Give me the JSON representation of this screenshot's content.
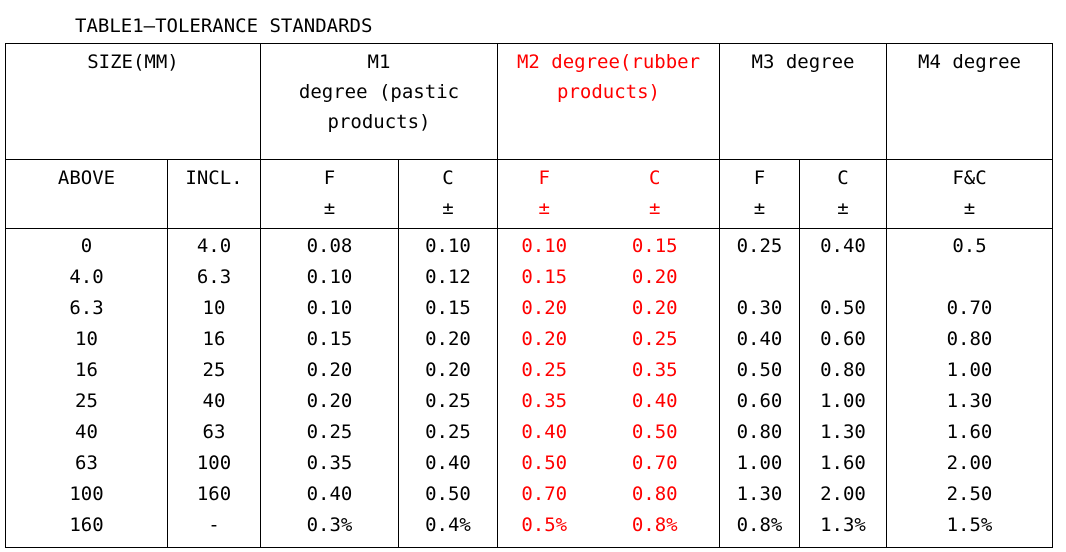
{
  "title": "TABLE1—TOLERANCE STANDARDS",
  "table": {
    "groups": [
      {
        "lines": [
          "SIZE(MM)"
        ]
      },
      {
        "lines": [
          "M1",
          "degree (pastic",
          "products)"
        ]
      },
      {
        "lines": [
          "M2 degree(rubber",
          "products)"
        ],
        "color": "#ff0000"
      },
      {
        "lines": [
          "M3 degree"
        ]
      },
      {
        "lines": [
          "M4 degree"
        ]
      }
    ],
    "subheaders": [
      {
        "label": "ABOVE"
      },
      {
        "label": "INCL."
      },
      {
        "label": "F",
        "sign": "±"
      },
      {
        "label": "C",
        "sign": "±"
      },
      {
        "label": "F",
        "sign": "±"
      },
      {
        "label": "C",
        "sign": "±"
      },
      {
        "label": "F",
        "sign": "±"
      },
      {
        "label": "C",
        "sign": "±"
      },
      {
        "label": "F&C",
        "sign": "±"
      }
    ],
    "rows": [
      [
        "0",
        "4.0",
        "0.08",
        "0.10",
        "0.10",
        "0.15",
        "0.25",
        "0.40",
        "0.5"
      ],
      [
        "4.0",
        "6.3",
        "0.10",
        "0.12",
        "0.15",
        "0.20",
        null,
        null,
        null
      ],
      [
        "6.3",
        "10",
        "0.10",
        "0.15",
        "0.20",
        "0.20",
        "0.30",
        "0.50",
        "0.70"
      ],
      [
        "10",
        "16",
        "0.15",
        "0.20",
        "0.20",
        "0.25",
        "0.40",
        "0.60",
        "0.80"
      ],
      [
        "16",
        "25",
        "0.20",
        "0.20",
        "0.25",
        "0.35",
        "0.50",
        "0.80",
        "1.00"
      ],
      [
        "25",
        "40",
        "0.20",
        "0.25",
        "0.35",
        "0.40",
        "0.60",
        "1.00",
        "1.30"
      ],
      [
        "40",
        "63",
        "0.25",
        "0.25",
        "0.40",
        "0.50",
        "0.80",
        "1.30",
        "1.60"
      ],
      [
        "63",
        "100",
        "0.35",
        "0.40",
        "0.50",
        "0.70",
        "1.00",
        "1.60",
        "2.00"
      ],
      [
        "100",
        "160",
        "0.40",
        "0.50",
        "0.70",
        "0.80",
        "1.30",
        "2.00",
        "2.50"
      ],
      [
        "160",
        "-",
        "0.3%",
        "0.4%",
        "0.5%",
        "0.8%",
        "0.8%",
        "1.3%",
        "1.5%"
      ]
    ]
  }
}
